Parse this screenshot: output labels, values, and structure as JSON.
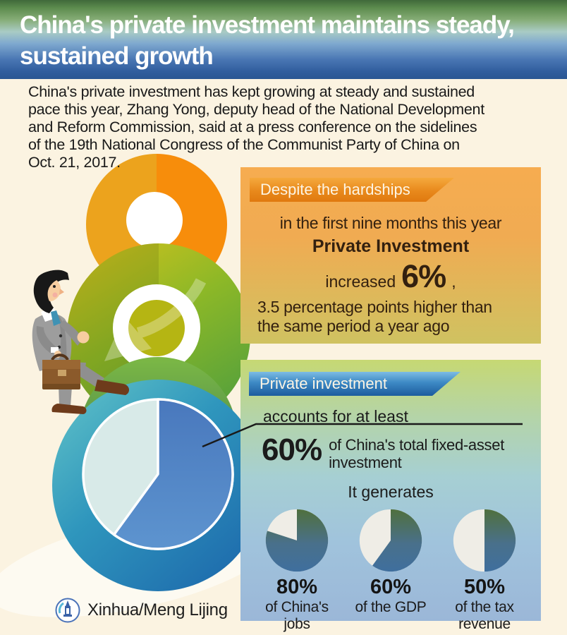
{
  "header": {
    "title_lines": [
      "China's private investment maintains steady,",
      "sustained growth"
    ]
  },
  "intro": {
    "lines": [
      "China's private investment has kept growing at steady and sustained",
      "pace this year, Zhang Yong, deputy head of the National Development",
      "and Reform Commission, said at a press conference on the sidelines",
      "of the 19th National Congress of the Communist Party of China on",
      "Oct. 21, 2017."
    ]
  },
  "hardships_panel": {
    "banner": "Despite the hardships",
    "line1": "in the first nine months this year",
    "line2": "Private Investment",
    "increase_word": "increased",
    "increase_value": "6%",
    "increase_comma": ",",
    "note_lines": [
      "3.5 percentage points higher than",
      "the same period a year ago"
    ]
  },
  "investment_panel": {
    "banner": "Private investment",
    "lead": "accounts for at least",
    "share_value": "60%",
    "share_text_lines": [
      "of China's total fixed-asset",
      "investment"
    ],
    "generates_label": "It generates",
    "stats": [
      {
        "value": "80%",
        "label": "of China's jobs",
        "percent": 80
      },
      {
        "value": "60%",
        "label": "of the GDP",
        "percent": 60
      },
      {
        "value": "50%",
        "label": "of the tax revenue",
        "percent": 50
      }
    ]
  },
  "main_pie": {
    "percent": 60
  },
  "credit": {
    "text": "Xinhua/Meng Lijing"
  },
  "icons": {
    "xinhua_logo": "xinhua-emblem-icon",
    "figure": "businessman-climbing-icon",
    "arrow": "curved-down-arrow-icon"
  },
  "colors": {
    "background": "#fbf3e1",
    "header_green": "#40693a",
    "header_blue": "#2a5693",
    "orange_panel_top": "#f6ac50",
    "orange_panel_bottom": "#cfc261",
    "orange_banner": "#e0790f",
    "blue_panel_top": "#c6d873",
    "blue_panel_bottom": "#9bb7d8",
    "blue_banner": "#1c5c9e",
    "main_pie_blue": "#4978bd",
    "main_pie_pale": "#d8eae8",
    "mini_pie_fill_top": "#50703d",
    "mini_pie_fill_bottom": "#3f6f9e",
    "mini_pie_rest": "#efede6"
  },
  "chart_data": [
    {
      "type": "pie",
      "title": "Private investment share of China's total fixed-asset investment",
      "labels": [
        "Private investment",
        "Other fixed-asset investment"
      ],
      "values": [
        60,
        40
      ],
      "annotation": "accounts for at least 60% of China's total fixed-asset investment"
    },
    {
      "type": "pie",
      "title": "Share of China's jobs generated by private investment",
      "labels": [
        "Generated by private investment",
        "Other"
      ],
      "values": [
        80,
        20
      ]
    },
    {
      "type": "pie",
      "title": "Share of the GDP generated by private investment",
      "labels": [
        "Generated by private investment",
        "Other"
      ],
      "values": [
        60,
        40
      ]
    },
    {
      "type": "pie",
      "title": "Share of the tax revenue generated by private investment",
      "labels": [
        "Generated by private investment",
        "Other"
      ],
      "values": [
        50,
        50
      ]
    }
  ]
}
